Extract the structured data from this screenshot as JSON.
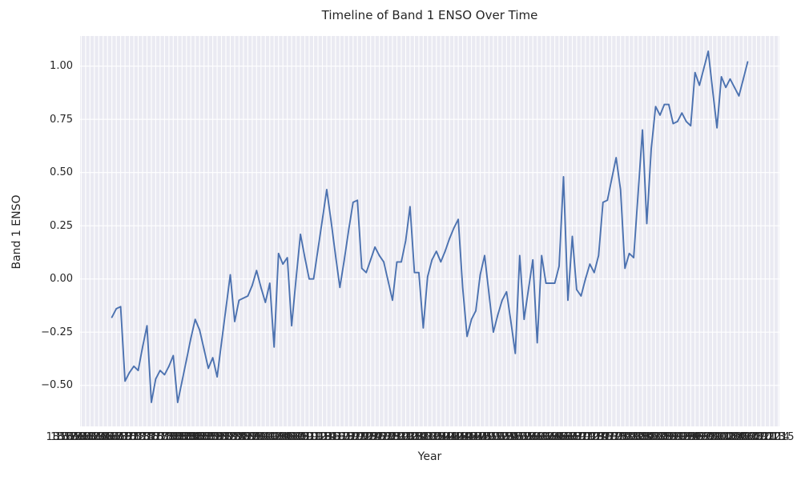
{
  "chart": {
    "title": "Timeline of Band 1 ENSO Over Time",
    "xlabel": "Year",
    "ylabel": "Band 1 ENSO"
  },
  "chart_data": {
    "type": "line",
    "title": "Timeline of Band 1 ENSO Over Time",
    "xlabel": "Year",
    "ylabel": "Band 1 ENSO",
    "legend": false,
    "grid": true,
    "x_years_range": [
      1870,
      2015
    ],
    "x_tick_label_years_range": [
      1856,
      2015
    ],
    "x_tick_labels_note": "every year labeled horizontally, overlapping into an unreadable dark band",
    "values": [
      -0.18,
      -0.14,
      -0.13,
      -0.48,
      -0.44,
      -0.41,
      -0.43,
      -0.32,
      -0.22,
      -0.58,
      -0.47,
      -0.43,
      -0.45,
      -0.41,
      -0.36,
      -0.58,
      -0.48,
      -0.38,
      -0.28,
      -0.19,
      -0.24,
      -0.33,
      -0.42,
      -0.37,
      -0.46,
      -0.3,
      -0.14,
      0.02,
      -0.2,
      -0.1,
      -0.09,
      -0.08,
      -0.03,
      0.04,
      -0.04,
      -0.11,
      -0.02,
      -0.32,
      0.12,
      0.07,
      0.1,
      -0.22,
      0.0,
      0.21,
      0.1,
      0.0,
      0.0,
      0.14,
      0.28,
      0.42,
      0.27,
      0.11,
      -0.04,
      0.09,
      0.23,
      0.36,
      0.37,
      0.05,
      0.03,
      0.09,
      0.15,
      0.11,
      0.08,
      -0.01,
      -0.1,
      0.08,
      0.08,
      0.18,
      0.34,
      0.03,
      0.03,
      -0.23,
      0.01,
      0.09,
      0.13,
      0.08,
      0.13,
      0.19,
      0.24,
      0.28,
      -0.04,
      -0.27,
      -0.19,
      -0.15,
      0.02,
      0.11,
      -0.07,
      -0.25,
      -0.17,
      -0.1,
      -0.06,
      -0.2,
      -0.35,
      0.11,
      -0.19,
      -0.05,
      0.09,
      -0.3,
      0.11,
      -0.02,
      -0.02,
      -0.02,
      0.06,
      0.48,
      -0.1,
      0.2,
      -0.05,
      -0.08,
      0.0,
      0.07,
      0.03,
      0.11,
      0.36,
      0.37,
      0.47,
      0.57,
      0.42,
      0.05,
      0.12,
      0.1,
      0.4,
      0.7,
      0.26,
      0.61,
      0.81,
      0.77,
      0.82,
      0.82,
      0.73,
      0.74,
      0.78,
      0.74,
      0.72,
      0.97,
      0.91,
      0.99,
      1.07,
      0.89,
      0.71,
      0.95,
      0.9,
      0.94,
      0.9,
      0.86,
      0.94,
      1.02
    ],
    "yticks": [
      1.0,
      0.75,
      0.5,
      0.25,
      0.0,
      -0.25,
      -0.5
    ],
    "ytick_labels": [
      "1.00",
      "0.75",
      "0.50",
      "0.25",
      "0.00",
      "−0.25",
      "−0.50"
    ],
    "ylim": [
      -0.69,
      1.14
    ],
    "line_color": "#4C72B0",
    "plot_bg_color": "#EAEAF2",
    "grid_color": "#FFFFFF",
    "text_color": "#262626",
    "legend_position": "none"
  }
}
